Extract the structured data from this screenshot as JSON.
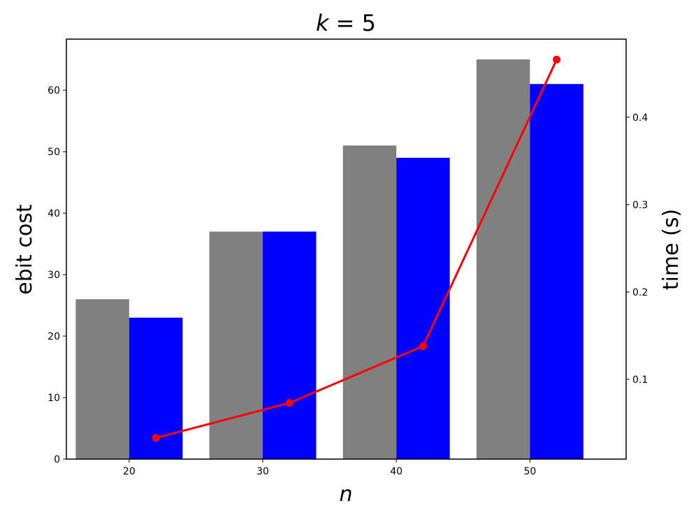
{
  "chart_data": {
    "type": "bar",
    "title": {
      "var": "k",
      "eq": " = ",
      "value": "5"
    },
    "xlabel": "n",
    "ylabel_left": "ebit cost",
    "ylabel_right": "time (s)",
    "categories": [
      "20",
      "30",
      "40",
      "50"
    ],
    "x_values": [
      20,
      30,
      40,
      50
    ],
    "series": [
      {
        "axis": "left",
        "kind": "bar",
        "color": "#808080",
        "values": [
          26,
          37,
          51,
          65
        ]
      },
      {
        "axis": "left",
        "kind": "bar",
        "color": "#0000ff",
        "values": [
          23,
          37,
          49,
          61
        ]
      },
      {
        "axis": "right",
        "kind": "line",
        "color": "#ff0000",
        "x": [
          22,
          32,
          42,
          52
        ],
        "values": [
          0.033,
          0.073,
          0.138,
          0.466
        ]
      }
    ],
    "xlim": [
      15.3,
      57.2
    ],
    "ylim_left": [
      0,
      68.3
    ],
    "ylim_right": [
      0.0087,
      0.4894
    ],
    "yticks_left": [
      0,
      10,
      20,
      30,
      40,
      50,
      60
    ],
    "yticks_right": [
      0.1,
      0.2,
      0.3,
      0.4
    ],
    "xticks": [
      20,
      30,
      40,
      50
    ],
    "ytick_labels_left": [
      "0",
      "10",
      "20",
      "30",
      "40",
      "50",
      "60"
    ],
    "ytick_labels_right": [
      "0.1",
      "0.2",
      "0.3",
      "0.4"
    ],
    "xtick_labels": [
      "20",
      "30",
      "40",
      "50"
    ],
    "grid": false,
    "legend": "none"
  }
}
